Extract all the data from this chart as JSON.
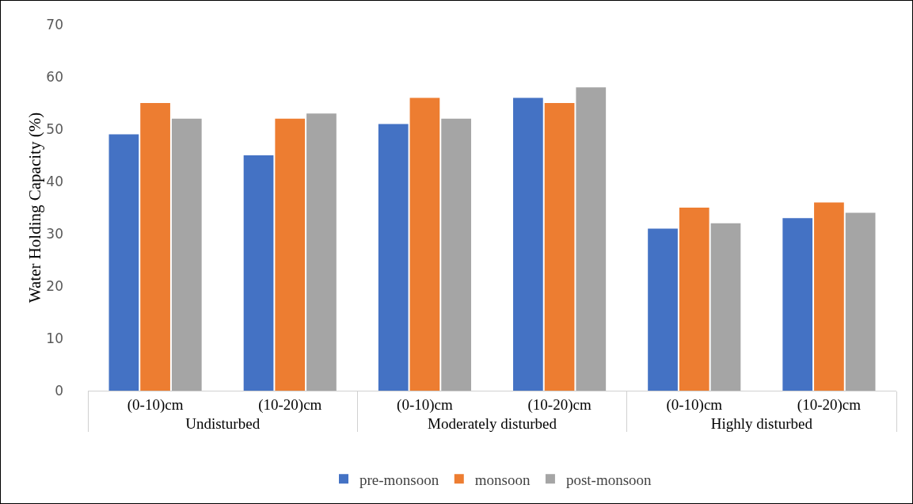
{
  "chart_data": {
    "type": "bar",
    "ylabel": "Water Holding Capacity (%)",
    "categories": [
      "(0-10)cm",
      "(10-20)cm",
      "(0-10)cm",
      "(10-20)cm",
      "(0-10)cm",
      "(10-20)cm"
    ],
    "annotations": [
      "Undisturbed",
      "Moderately disturbed",
      "Highly disturbed"
    ],
    "series": [
      {
        "name": "pre-monsoon",
        "color": "#4472c4",
        "values": [
          49,
          45,
          51,
          56,
          31,
          33
        ]
      },
      {
        "name": "monsoon",
        "color": "#ed7d31",
        "values": [
          55,
          52,
          56,
          55,
          35,
          36
        ]
      },
      {
        "name": "post-monsoon",
        "color": "#a5a5a5",
        "values": [
          52,
          53,
          52,
          58,
          32,
          34
        ]
      }
    ],
    "ylim": [
      0,
      70
    ],
    "yticks": [
      0,
      10,
      20,
      30,
      40,
      50,
      60,
      70
    ],
    "grid": false,
    "legend": "bottom"
  }
}
